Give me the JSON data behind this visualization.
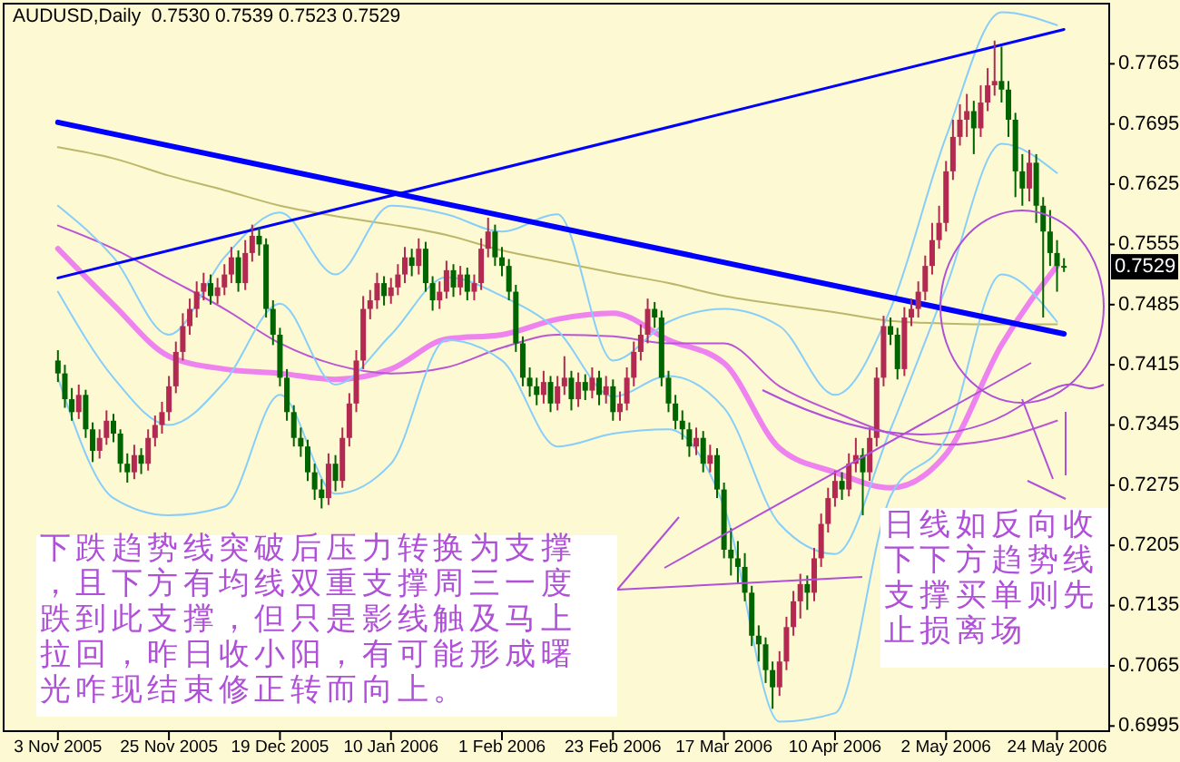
{
  "chart_data": {
    "type": "candlestick",
    "title": "AUDUSD,Daily  0.7530 0.7539 0.7523 0.7529",
    "categories": [
      "3 Nov 2005",
      null,
      null,
      null,
      null,
      null,
      null,
      null,
      null,
      null,
      null,
      null,
      null,
      null,
      null,
      null,
      "25 Nov 2005",
      null,
      null,
      null,
      null,
      null,
      null,
      null,
      null,
      null,
      null,
      null,
      null,
      null,
      null,
      null,
      "19 Dec 2005",
      null,
      null,
      null,
      null,
      null,
      null,
      null,
      null,
      null,
      null,
      null,
      null,
      null,
      null,
      null,
      "10 Jan 2006",
      null,
      null,
      null,
      null,
      null,
      null,
      null,
      null,
      null,
      null,
      null,
      null,
      null,
      null,
      null,
      "1 Feb 2006",
      null,
      null,
      null,
      null,
      null,
      null,
      null,
      null,
      null,
      null,
      null,
      null,
      null,
      null,
      null,
      "23 Feb 2006",
      null,
      null,
      null,
      null,
      null,
      null,
      null,
      null,
      null,
      null,
      null,
      null,
      null,
      null,
      null,
      "17 Mar 2006",
      null,
      null,
      null,
      null,
      null,
      null,
      null,
      null,
      null,
      null,
      null,
      null,
      null,
      null,
      null,
      "10 Apr 2006",
      null,
      null,
      null,
      null,
      null,
      null,
      null,
      null,
      null,
      null,
      null,
      null,
      null,
      null,
      null,
      "2 May 2006",
      null,
      null,
      null,
      null,
      null,
      null,
      null,
      null,
      null,
      null,
      null,
      null,
      null,
      null,
      null,
      "24 May 2006",
      null
    ],
    "ohlc": [
      [
        0.742,
        0.7432,
        0.7395,
        0.7405
      ],
      [
        0.7405,
        0.7415,
        0.7365,
        0.7375
      ],
      [
        0.7375,
        0.7388,
        0.735,
        0.736
      ],
      [
        0.736,
        0.7392,
        0.7352,
        0.738
      ],
      [
        0.738,
        0.7386,
        0.733,
        0.734
      ],
      [
        0.734,
        0.7348,
        0.7302,
        0.7315
      ],
      [
        0.7315,
        0.734,
        0.7306,
        0.733
      ],
      [
        0.733,
        0.7362,
        0.7322,
        0.735
      ],
      [
        0.735,
        0.7358,
        0.7325,
        0.7335
      ],
      [
        0.7335,
        0.734,
        0.729,
        0.73
      ],
      [
        0.73,
        0.7312,
        0.7278,
        0.729
      ],
      [
        0.729,
        0.7322,
        0.7282,
        0.731
      ],
      [
        0.731,
        0.7318,
        0.7288,
        0.73
      ],
      [
        0.73,
        0.734,
        0.7292,
        0.733
      ],
      [
        0.733,
        0.7356,
        0.732,
        0.7345
      ],
      [
        0.7345,
        0.7372,
        0.7335,
        0.736
      ],
      [
        0.736,
        0.7402,
        0.735,
        0.739
      ],
      [
        0.739,
        0.7442,
        0.7382,
        0.743
      ],
      [
        0.743,
        0.7475,
        0.742,
        0.746
      ],
      [
        0.746,
        0.7492,
        0.745,
        0.748
      ],
      [
        0.748,
        0.7512,
        0.747,
        0.75
      ],
      [
        0.75,
        0.7522,
        0.749,
        0.751
      ],
      [
        0.751,
        0.752,
        0.7485,
        0.7495
      ],
      [
        0.7495,
        0.7516,
        0.7486,
        0.7505
      ],
      [
        0.7505,
        0.7532,
        0.7496,
        0.752
      ],
      [
        0.752,
        0.7552,
        0.751,
        0.754
      ],
      [
        0.754,
        0.7548,
        0.75,
        0.751
      ],
      [
        0.751,
        0.756,
        0.7502,
        0.7545
      ],
      [
        0.7545,
        0.7578,
        0.7535,
        0.7565
      ],
      [
        0.7565,
        0.7575,
        0.7542,
        0.7555
      ],
      [
        0.7555,
        0.7562,
        0.747,
        0.748
      ],
      [
        0.748,
        0.749,
        0.7438,
        0.745
      ],
      [
        0.745,
        0.7458,
        0.739,
        0.74
      ],
      [
        0.74,
        0.741,
        0.735,
        0.736
      ],
      [
        0.736,
        0.7368,
        0.732,
        0.733
      ],
      [
        0.733,
        0.7342,
        0.7308,
        0.732
      ],
      [
        0.732,
        0.7328,
        0.728,
        0.729
      ],
      [
        0.729,
        0.73,
        0.7258,
        0.727
      ],
      [
        0.727,
        0.7282,
        0.7248,
        0.726
      ],
      [
        0.726,
        0.7312,
        0.7252,
        0.73
      ],
      [
        0.73,
        0.731,
        0.7268,
        0.728
      ],
      [
        0.728,
        0.7342,
        0.7272,
        0.733
      ],
      [
        0.733,
        0.7382,
        0.732,
        0.737
      ],
      [
        0.737,
        0.7432,
        0.736,
        0.742
      ],
      [
        0.742,
        0.7495,
        0.741,
        0.748
      ],
      [
        0.748,
        0.7502,
        0.7468,
        0.749
      ],
      [
        0.749,
        0.7522,
        0.748,
        0.751
      ],
      [
        0.751,
        0.7518,
        0.7484,
        0.7495
      ],
      [
        0.7495,
        0.7516,
        0.7486,
        0.7505
      ],
      [
        0.7505,
        0.7532,
        0.7496,
        0.752
      ],
      [
        0.752,
        0.7552,
        0.751,
        0.754
      ],
      [
        0.754,
        0.755,
        0.7518,
        0.753
      ],
      [
        0.753,
        0.7562,
        0.752,
        0.755
      ],
      [
        0.755,
        0.7558,
        0.75,
        0.751
      ],
      [
        0.751,
        0.7518,
        0.7478,
        0.749
      ],
      [
        0.749,
        0.7512,
        0.748,
        0.75
      ],
      [
        0.75,
        0.7536,
        0.7492,
        0.7525
      ],
      [
        0.7525,
        0.7532,
        0.7494,
        0.7505
      ],
      [
        0.7505,
        0.753,
        0.7496,
        0.752
      ],
      [
        0.752,
        0.7528,
        0.749,
        0.75
      ],
      [
        0.75,
        0.752,
        0.749,
        0.751
      ],
      [
        0.751,
        0.7562,
        0.7502,
        0.755
      ],
      [
        0.755,
        0.7586,
        0.754,
        0.757
      ],
      [
        0.757,
        0.7578,
        0.753,
        0.754
      ],
      [
        0.754,
        0.7552,
        0.7518,
        0.753
      ],
      [
        0.753,
        0.7538,
        0.749,
        0.75
      ],
      [
        0.75,
        0.7508,
        0.743,
        0.744
      ],
      [
        0.744,
        0.7448,
        0.739,
        0.74
      ],
      [
        0.74,
        0.7412,
        0.7378,
        0.739
      ],
      [
        0.739,
        0.74,
        0.7368,
        0.738
      ],
      [
        0.738,
        0.7408,
        0.737,
        0.7395
      ],
      [
        0.7395,
        0.7402,
        0.736,
        0.737
      ],
      [
        0.737,
        0.7402,
        0.7362,
        0.739
      ],
      [
        0.739,
        0.7425,
        0.738,
        0.74
      ],
      [
        0.74,
        0.7408,
        0.7362,
        0.7375
      ],
      [
        0.7375,
        0.7406,
        0.7366,
        0.7395
      ],
      [
        0.7395,
        0.7404,
        0.7374,
        0.7385
      ],
      [
        0.7385,
        0.7412,
        0.7376,
        0.74
      ],
      [
        0.74,
        0.7408,
        0.7368,
        0.738
      ],
      [
        0.738,
        0.7402,
        0.737,
        0.739
      ],
      [
        0.739,
        0.7398,
        0.735,
        0.736
      ],
      [
        0.736,
        0.7384,
        0.735,
        0.737
      ],
      [
        0.737,
        0.7412,
        0.7362,
        0.74
      ],
      [
        0.74,
        0.7442,
        0.739,
        0.743
      ],
      [
        0.743,
        0.7462,
        0.742,
        0.745
      ],
      [
        0.745,
        0.7492,
        0.744,
        0.748
      ],
      [
        0.748,
        0.7488,
        0.7458,
        0.747
      ],
      [
        0.747,
        0.7478,
        0.739,
        0.74
      ],
      [
        0.74,
        0.7408,
        0.736,
        0.737
      ],
      [
        0.737,
        0.738,
        0.734,
        0.735
      ],
      [
        0.735,
        0.7362,
        0.7328,
        0.734
      ],
      [
        0.734,
        0.7348,
        0.7308,
        0.732
      ],
      [
        0.732,
        0.7342,
        0.731,
        0.733
      ],
      [
        0.733,
        0.7338,
        0.729,
        0.73
      ],
      [
        0.73,
        0.7322,
        0.729,
        0.731
      ],
      [
        0.731,
        0.7318,
        0.726,
        0.727
      ],
      [
        0.727,
        0.7278,
        0.719,
        0.72
      ],
      [
        0.72,
        0.7225,
        0.717,
        0.719
      ],
      [
        0.719,
        0.721,
        0.716,
        0.718
      ],
      [
        0.718,
        0.7196,
        0.714,
        0.715
      ],
      [
        0.715,
        0.7158,
        0.7088,
        0.71
      ],
      [
        0.71,
        0.7112,
        0.707,
        0.709
      ],
      [
        0.709,
        0.7098,
        0.7045,
        0.706
      ],
      [
        0.706,
        0.707,
        0.7015,
        0.704
      ],
      [
        0.704,
        0.7082,
        0.703,
        0.707
      ],
      [
        0.707,
        0.7122,
        0.706,
        0.711
      ],
      [
        0.711,
        0.7152,
        0.71,
        0.714
      ],
      [
        0.714,
        0.7172,
        0.712,
        0.716
      ],
      [
        0.716,
        0.717,
        0.713,
        0.715
      ],
      [
        0.715,
        0.7202,
        0.714,
        0.719
      ],
      [
        0.719,
        0.7242,
        0.718,
        0.723
      ],
      [
        0.723,
        0.7272,
        0.722,
        0.726
      ],
      [
        0.726,
        0.7292,
        0.725,
        0.728
      ],
      [
        0.728,
        0.729,
        0.7258,
        0.727
      ],
      [
        0.727,
        0.7312,
        0.7262,
        0.73
      ],
      [
        0.73,
        0.733,
        0.729,
        0.731
      ],
      [
        0.731,
        0.7318,
        0.724,
        0.729
      ],
      [
        0.729,
        0.7342,
        0.728,
        0.733
      ],
      [
        0.733,
        0.7412,
        0.732,
        0.74
      ],
      [
        0.74,
        0.7472,
        0.739,
        0.746
      ],
      [
        0.746,
        0.747,
        0.7438,
        0.745
      ],
      [
        0.745,
        0.7458,
        0.7398,
        0.741
      ],
      [
        0.741,
        0.7482,
        0.7402,
        0.747
      ],
      [
        0.747,
        0.7492,
        0.746,
        0.748
      ],
      [
        0.748,
        0.7512,
        0.747,
        0.75
      ],
      [
        0.75,
        0.7542,
        0.749,
        0.753
      ],
      [
        0.753,
        0.758,
        0.752,
        0.756
      ],
      [
        0.756,
        0.76,
        0.755,
        0.758
      ],
      [
        0.758,
        0.7652,
        0.757,
        0.764
      ],
      [
        0.764,
        0.77,
        0.763,
        0.768
      ],
      [
        0.768,
        0.7718,
        0.767,
        0.77
      ],
      [
        0.77,
        0.773,
        0.768,
        0.771
      ],
      [
        0.771,
        0.7722,
        0.766,
        0.769
      ],
      [
        0.769,
        0.774,
        0.768,
        0.772
      ],
      [
        0.772,
        0.776,
        0.771,
        0.774
      ],
      [
        0.774,
        0.7792,
        0.7728,
        0.7745
      ],
      [
        0.7745,
        0.7785,
        0.772,
        0.7735
      ],
      [
        0.7735,
        0.7745,
        0.768,
        0.77
      ],
      [
        0.77,
        0.7708,
        0.761,
        0.764
      ],
      [
        0.764,
        0.766,
        0.76,
        0.762
      ],
      [
        0.762,
        0.7665,
        0.7605,
        0.765
      ],
      [
        0.765,
        0.766,
        0.758,
        0.76
      ],
      [
        0.76,
        0.761,
        0.747,
        0.757
      ],
      [
        0.757,
        0.7595,
        0.753,
        0.7545
      ],
      [
        0.7545,
        0.756,
        0.75,
        0.753
      ],
      [
        0.753,
        0.7539,
        0.7523,
        0.7529
      ]
    ],
    "colors": [
      "#006400",
      "#006400",
      "#006400",
      "#b22a52",
      "#006400",
      "#006400",
      "#b22a52",
      "#b22a52",
      "#006400",
      "#006400",
      "#006400",
      "#b22a52",
      "#006400",
      "#b22a52",
      "#b22a52",
      "#b22a52",
      "#b22a52",
      "#b22a52",
      "#b22a52",
      "#b22a52",
      "#b22a52",
      "#b22a52",
      "#006400",
      "#b22a52",
      "#b22a52",
      "#b22a52",
      "#006400",
      "#b22a52",
      "#b22a52",
      "#006400",
      "#006400",
      "#006400",
      "#006400",
      "#006400",
      "#006400",
      "#006400",
      "#006400",
      "#006400",
      "#006400",
      "#b22a52",
      "#006400",
      "#b22a52",
      "#b22a52",
      "#b22a52",
      "#b22a52",
      "#b22a52",
      "#b22a52",
      "#006400",
      "#b22a52",
      "#b22a52",
      "#b22a52",
      "#006400",
      "#b22a52",
      "#006400",
      "#006400",
      "#b22a52",
      "#b22a52",
      "#006400",
      "#b22a52",
      "#006400",
      "#b22a52",
      "#b22a52",
      "#b22a52",
      "#006400",
      "#006400",
      "#006400",
      "#006400",
      "#006400",
      "#006400",
      "#006400",
      "#b22a52",
      "#006400",
      "#b22a52",
      "#b22a52",
      "#006400",
      "#b22a52",
      "#006400",
      "#b22a52",
      "#006400",
      "#b22a52",
      "#006400",
      "#b22a52",
      "#b22a52",
      "#b22a52",
      "#b22a52",
      "#b22a52",
      "#006400",
      "#006400",
      "#006400",
      "#006400",
      "#006400",
      "#006400",
      "#b22a52",
      "#006400",
      "#b22a52",
      "#006400",
      "#006400",
      "#006400",
      "#006400",
      "#006400",
      "#006400",
      "#006400",
      "#006400",
      "#006400",
      "#b22a52",
      "#b22a52",
      "#b22a52",
      "#b22a52",
      "#006400",
      "#b22a52",
      "#b22a52",
      "#b22a52",
      "#b22a52",
      "#006400",
      "#b22a52",
      "#b22a52",
      "#006400",
      "#b22a52",
      "#b22a52",
      "#b22a52",
      "#006400",
      "#006400",
      "#b22a52",
      "#b22a52",
      "#b22a52",
      "#b22a52",
      "#b22a52",
      "#b22a52",
      "#b22a52",
      "#b22a52",
      "#b22a52",
      "#b22a52",
      "#006400",
      "#b22a52",
      "#b22a52",
      "#b22a52",
      "#006400",
      "#006400",
      "#006400",
      "#006400",
      "#b22a52",
      "#006400",
      "#006400",
      "#006400",
      "#006400",
      "#006400"
    ],
    "series": [
      {
        "type": "line",
        "color": "#ee82ee",
        "values": [
          0.755,
          null,
          null,
          null,
          null,
          null,
          null,
          null,
          0.7485,
          null,
          null,
          null,
          null,
          null,
          null,
          null,
          0.7425,
          null,
          null,
          null,
          null,
          null,
          null,
          null,
          0.741,
          null,
          null,
          null,
          null,
          null,
          null,
          null,
          0.7405,
          null,
          null,
          null,
          null,
          null,
          null,
          null,
          0.7398,
          null,
          null,
          null,
          null,
          null,
          null,
          null,
          0.741,
          null,
          null,
          null,
          null,
          null,
          null,
          null,
          0.7445,
          null,
          null,
          null,
          null,
          null,
          null,
          null,
          0.745,
          null,
          null,
          null,
          null,
          null,
          null,
          null,
          0.7468,
          null,
          null,
          null,
          null,
          null,
          null,
          null,
          0.7475,
          null,
          null,
          null,
          null,
          null,
          null,
          null,
          0.7444,
          null,
          null,
          null,
          null,
          null,
          null,
          null,
          0.7417,
          null,
          null,
          null,
          null,
          null,
          null,
          null,
          0.7318,
          null,
          null,
          null,
          null,
          null,
          null,
          null,
          0.729,
          null,
          null,
          null,
          null,
          null,
          null,
          null,
          0.7272,
          null,
          null,
          null,
          null,
          null,
          null,
          null,
          0.7311,
          null,
          null,
          null,
          null,
          null,
          null,
          null,
          0.7438,
          null,
          null,
          null,
          null,
          null,
          null,
          null,
          0.753,
          null
        ]
      },
      {
        "type": "line",
        "color": "#ba55d3",
        "values": [
          0.7577,
          null,
          null,
          null,
          null,
          null,
          null,
          null,
          0.755,
          null,
          null,
          null,
          null,
          null,
          null,
          null,
          0.7515,
          null,
          null,
          null,
          null,
          null,
          null,
          null,
          0.748,
          null,
          null,
          null,
          null,
          null,
          null,
          null,
          0.744,
          null,
          null,
          null,
          null,
          null,
          null,
          null,
          0.7415,
          null,
          null,
          null,
          null,
          null,
          null,
          null,
          0.7405,
          null,
          null,
          null,
          null,
          null,
          null,
          null,
          0.7412,
          null,
          null,
          null,
          null,
          null,
          null,
          null,
          0.7435,
          null,
          null,
          null,
          null,
          null,
          null,
          null,
          0.745,
          null,
          null,
          null,
          null,
          null,
          null,
          null,
          0.7448,
          null,
          null,
          null,
          null,
          null,
          null,
          null,
          0.744,
          null,
          null,
          null,
          null,
          null,
          null,
          null,
          0.744,
          null,
          null,
          null,
          null,
          null,
          null,
          null,
          0.739,
          null,
          null,
          null,
          null,
          null,
          null,
          null,
          0.736,
          null,
          null,
          null,
          null,
          null,
          null,
          null,
          0.7335,
          null,
          null,
          null,
          null,
          null,
          null,
          null,
          0.7322,
          null,
          null,
          null,
          null,
          null,
          null,
          null,
          0.733,
          null,
          null,
          null,
          null,
          null,
          null,
          null,
          0.735,
          null
        ]
      },
      {
        "type": "line",
        "color": "#bdb76b",
        "values": [
          0.7668,
          null,
          null,
          null,
          null,
          null,
          null,
          null,
          0.7655,
          null,
          null,
          null,
          null,
          null,
          null,
          null,
          0.7635,
          null,
          null,
          null,
          null,
          null,
          null,
          null,
          0.7618,
          null,
          null,
          null,
          null,
          null,
          null,
          null,
          0.76,
          null,
          null,
          null,
          null,
          null,
          null,
          null,
          0.7588,
          null,
          null,
          null,
          null,
          null,
          null,
          null,
          0.7578,
          null,
          null,
          null,
          null,
          null,
          null,
          null,
          0.7566,
          null,
          null,
          null,
          null,
          null,
          null,
          null,
          0.7548,
          null,
          null,
          null,
          null,
          null,
          null,
          null,
          0.7535,
          null,
          null,
          null,
          null,
          null,
          null,
          null,
          0.7522,
          null,
          null,
          null,
          null,
          null,
          null,
          null,
          0.751,
          null,
          null,
          null,
          null,
          null,
          null,
          null,
          0.7495,
          null,
          null,
          null,
          null,
          null,
          null,
          null,
          0.7485,
          null,
          null,
          null,
          null,
          null,
          null,
          null,
          0.7476,
          null,
          null,
          null,
          null,
          null,
          null,
          null,
          0.7466,
          null,
          null,
          null,
          null,
          null,
          null,
          null,
          0.7463,
          null,
          null,
          null,
          null,
          null,
          null,
          null,
          0.7462,
          null,
          null,
          null,
          null,
          null,
          null,
          null,
          0.7462,
          null
        ]
      },
      {
        "type": "line",
        "color": "#87cefa",
        "values": [
          0.76,
          null,
          null,
          null,
          null,
          null,
          null,
          null,
          0.754,
          null,
          null,
          null,
          null,
          null,
          null,
          null,
          0.745,
          null,
          null,
          null,
          null,
          null,
          null,
          null,
          0.754,
          null,
          null,
          null,
          null,
          null,
          null,
          null,
          0.7592,
          null,
          null,
          null,
          null,
          null,
          null,
          null,
          0.752,
          null,
          null,
          null,
          null,
          null,
          null,
          null,
          0.76,
          null,
          null,
          null,
          null,
          null,
          null,
          null,
          0.759,
          null,
          null,
          null,
          null,
          null,
          null,
          null,
          0.757,
          null,
          null,
          null,
          null,
          null,
          null,
          null,
          0.759,
          null,
          null,
          null,
          null,
          null,
          null,
          null,
          0.742,
          null,
          null,
          null,
          null,
          null,
          null,
          null,
          0.7465,
          null,
          null,
          null,
          null,
          null,
          null,
          null,
          0.748,
          null,
          null,
          null,
          null,
          null,
          null,
          null,
          0.746,
          null,
          null,
          null,
          null,
          null,
          null,
          null,
          0.738,
          null,
          null,
          null,
          null,
          null,
          null,
          null,
          0.748,
          null,
          null,
          null,
          null,
          null,
          null,
          null,
          0.768,
          null,
          null,
          null,
          null,
          null,
          null,
          null,
          0.7825,
          null,
          null,
          null,
          null,
          null,
          null,
          null,
          0.781,
          null
        ]
      },
      {
        "type": "line",
        "color": "#87cefa",
        "values": [
          0.75,
          null,
          null,
          null,
          null,
          null,
          null,
          null,
          0.74,
          null,
          null,
          null,
          null,
          null,
          null,
          null,
          0.7345,
          null,
          null,
          null,
          null,
          null,
          null,
          null,
          0.7395,
          null,
          null,
          null,
          null,
          null,
          null,
          null,
          0.7486,
          null,
          null,
          null,
          null,
          null,
          null,
          null,
          0.7392,
          null,
          null,
          null,
          null,
          null,
          null,
          null,
          0.745,
          null,
          null,
          null,
          null,
          null,
          null,
          null,
          0.7517,
          null,
          null,
          null,
          null,
          null,
          null,
          null,
          0.7495,
          null,
          null,
          null,
          null,
          null,
          null,
          null,
          0.7455,
          null,
          null,
          null,
          null,
          null,
          null,
          null,
          0.7378,
          null,
          null,
          null,
          null,
          null,
          null,
          null,
          0.7402,
          null,
          null,
          null,
          null,
          null,
          null,
          null,
          0.7365,
          null,
          null,
          null,
          null,
          null,
          null,
          null,
          0.723,
          null,
          null,
          null,
          null,
          null,
          null,
          null,
          0.7195,
          null,
          null,
          null,
          null,
          null,
          null,
          null,
          0.734,
          null,
          null,
          null,
          null,
          null,
          null,
          null,
          0.7505,
          null,
          null,
          null,
          null,
          null,
          null,
          null,
          0.7672,
          null,
          null,
          null,
          null,
          null,
          null,
          null,
          0.7638,
          null
        ]
      },
      {
        "type": "line",
        "color": "#87cefa",
        "values": [
          0.74,
          null,
          null,
          null,
          null,
          null,
          null,
          null,
          0.726,
          null,
          null,
          null,
          null,
          null,
          null,
          null,
          0.724,
          null,
          null,
          null,
          null,
          null,
          null,
          null,
          0.725,
          null,
          null,
          null,
          null,
          null,
          null,
          null,
          0.738,
          null,
          null,
          null,
          null,
          null,
          null,
          null,
          0.7265,
          null,
          null,
          null,
          null,
          null,
          null,
          null,
          0.73,
          null,
          null,
          null,
          null,
          null,
          null,
          null,
          0.7444,
          null,
          null,
          null,
          null,
          null,
          null,
          null,
          0.742,
          null,
          null,
          null,
          null,
          null,
          null,
          null,
          0.732,
          null,
          null,
          null,
          null,
          null,
          null,
          null,
          0.7335,
          null,
          null,
          null,
          null,
          null,
          null,
          null,
          0.734,
          null,
          null,
          null,
          null,
          null,
          null,
          null,
          0.725,
          null,
          null,
          null,
          null,
          null,
          null,
          null,
          0.7,
          null,
          null,
          null,
          null,
          null,
          null,
          null,
          0.701,
          null,
          null,
          null,
          null,
          null,
          null,
          null,
          0.7262,
          null,
          null,
          null,
          null,
          null,
          null,
          null,
          0.733,
          null,
          null,
          null,
          null,
          null,
          null,
          null,
          0.752,
          null,
          null,
          null,
          null,
          null,
          null,
          null,
          0.7465,
          null
        ]
      },
      {
        "type": "line",
        "color": "#0000ff",
        "values": [
          0.7697,
          null,
          null,
          null,
          null,
          null,
          null,
          null,
          null,
          null,
          null,
          null,
          null,
          null,
          null,
          null,
          null,
          null,
          null,
          null,
          null,
          null,
          null,
          null,
          null,
          null,
          null,
          null,
          null,
          null,
          null,
          null,
          null,
          null,
          null,
          null,
          null,
          null,
          null,
          null,
          null,
          null,
          null,
          null,
          null,
          null,
          null,
          null,
          null,
          null,
          null,
          null,
          null,
          null,
          null,
          null,
          null,
          null,
          null,
          null,
          null,
          null,
          null,
          null,
          null,
          null,
          null,
          null,
          null,
          null,
          null,
          null,
          null,
          null,
          null,
          null,
          null,
          null,
          null,
          null,
          null,
          null,
          null,
          null,
          null,
          null,
          null,
          null,
          null,
          null,
          null,
          null,
          null,
          null,
          null,
          null,
          null,
          null,
          null,
          null,
          null,
          null,
          null,
          null,
          null,
          null,
          null,
          null,
          null,
          null,
          null,
          null,
          null,
          null,
          null,
          null,
          null,
          null,
          null,
          null,
          null,
          null,
          null,
          null,
          null,
          null,
          null,
          null,
          null,
          null,
          null,
          null,
          null,
          null,
          null,
          null,
          null,
          null,
          null,
          null,
          null,
          null,
          null,
          null,
          null,
          0.7451
        ]
      },
      {
        "type": "line",
        "color": "#0000ff",
        "values": [
          0.7516,
          null,
          null,
          null,
          null,
          null,
          null,
          null,
          null,
          null,
          null,
          null,
          null,
          null,
          null,
          null,
          null,
          null,
          null,
          null,
          null,
          null,
          null,
          null,
          null,
          null,
          null,
          null,
          null,
          null,
          null,
          null,
          null,
          null,
          null,
          null,
          null,
          null,
          null,
          null,
          null,
          null,
          null,
          null,
          null,
          null,
          null,
          null,
          null,
          null,
          null,
          null,
          null,
          null,
          null,
          null,
          null,
          null,
          null,
          null,
          null,
          null,
          null,
          null,
          null,
          null,
          null,
          null,
          null,
          null,
          null,
          null,
          null,
          null,
          null,
          null,
          null,
          null,
          null,
          null,
          null,
          null,
          null,
          null,
          null,
          null,
          null,
          null,
          null,
          null,
          null,
          null,
          null,
          null,
          null,
          null,
          null,
          null,
          null,
          null,
          null,
          null,
          null,
          null,
          null,
          null,
          null,
          null,
          null,
          null,
          null,
          null,
          null,
          null,
          null,
          null,
          null,
          null,
          null,
          null,
          null,
          null,
          null,
          null,
          null,
          null,
          null,
          null,
          null,
          null,
          null,
          null,
          null,
          null,
          null,
          null,
          null,
          null,
          null,
          null,
          null,
          null,
          null,
          null,
          null,
          0.7805
        ]
      }
    ],
    "ylim": [
      0.6989,
      0.7835
    ],
    "yticks": [
      0.6995,
      0.7065,
      0.7135,
      0.7205,
      0.7275,
      0.7345,
      0.7415,
      0.7485,
      0.7555,
      0.7625,
      0.7695,
      0.7765
    ],
    "annotations": [
      "下跌趋势线突破后压力转换为支撑，且下方有均线双重支撑周三一度跌到此支撑，但只是影线触及马上拉回，昨日收小阳，有可能形成曙光咋现结束修正转而向上。",
      "日线如反向收下下方趋势线支撑买单则先止损离场",
      "0.7529"
    ]
  }
}
